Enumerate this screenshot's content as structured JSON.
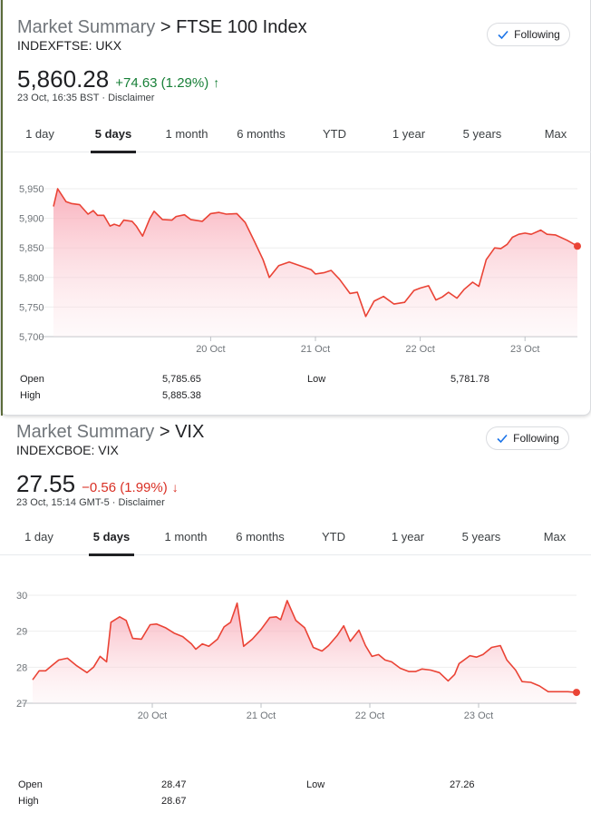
{
  "cards": [
    {
      "crumb": "Market Summary",
      "separator": ">",
      "name": "FTSE 100 Index",
      "ticker": "INDEXFTSE: UKX",
      "follow_label": "Following",
      "price": "5,860.28",
      "change": "+74.63 (1.29%)",
      "direction": "up",
      "arrow": "↑",
      "timestamp": "23 Oct, 16:35 BST",
      "disclaimer": "Disclaimer",
      "tabs": [
        "1 day",
        "5 days",
        "1 month",
        "6 months",
        "YTD",
        "1 year",
        "5 years",
        "Max"
      ],
      "active_tab": "5 days",
      "stats": {
        "open_label": "Open",
        "open": "5,785.65",
        "high_label": "High",
        "high": "5,885.38",
        "low_label": "Low",
        "low": "5,781.78"
      }
    },
    {
      "crumb": "Market Summary",
      "separator": ">",
      "name": "VIX",
      "ticker": "INDEXCBOE: VIX",
      "follow_label": "Following",
      "price": "27.55",
      "change": "−0.56 (1.99%)",
      "direction": "down",
      "arrow": "↓",
      "timestamp": "23 Oct, 15:14 GMT-5",
      "disclaimer": "Disclaimer",
      "tabs": [
        "1 day",
        "5 days",
        "1 month",
        "6 months",
        "YTD",
        "1 year",
        "5 years",
        "Max"
      ],
      "active_tab": "5 days",
      "stats": {
        "open_label": "Open",
        "open": "28.47",
        "high_label": "High",
        "high": "28.67",
        "low_label": "Low",
        "low": "27.26"
      }
    }
  ],
  "chart_data": [
    {
      "type": "line",
      "color": "#ea4335",
      "ylim": [
        5700,
        5950
      ],
      "yticks": [
        "5,700",
        "5,750",
        "5,800",
        "5,850",
        "5,900",
        "5,950"
      ],
      "xticks": [
        "20 Oct",
        "21 Oct",
        "22 Oct",
        "23 Oct"
      ],
      "x_range": [
        0,
        5
      ],
      "xtick_positions": [
        1.5,
        2.5,
        3.5,
        4.5
      ],
      "grid": true,
      "series": [
        {
          "x": [
            0.0,
            0.04,
            0.12,
            0.17,
            0.25,
            0.33,
            0.38,
            0.42,
            0.48,
            0.54,
            0.58,
            0.63,
            0.67,
            0.75,
            0.79,
            0.85,
            0.92,
            0.96,
            1.04,
            1.13,
            1.17,
            1.25,
            1.31,
            1.42,
            1.5,
            1.58,
            1.65,
            1.75,
            1.83,
            1.92,
            2.0,
            2.06,
            2.15,
            2.25,
            2.35,
            2.46,
            2.5,
            2.58,
            2.65,
            2.73,
            2.83,
            2.9,
            2.98,
            3.06,
            3.15,
            3.25,
            3.35,
            3.44,
            3.5,
            3.58,
            3.65,
            3.71,
            3.77,
            3.85,
            3.92,
            4.0,
            4.06,
            4.13,
            4.21,
            4.27,
            4.33,
            4.38,
            4.44,
            4.5,
            4.56,
            4.65,
            4.71,
            4.79,
            4.9,
            5.0
          ],
          "y": [
            5920,
            5950,
            5928,
            5925,
            5923,
            5907,
            5913,
            5905,
            5905,
            5887,
            5890,
            5887,
            5897,
            5895,
            5887,
            5870,
            5900,
            5912,
            5898,
            5897,
            5903,
            5906,
            5898,
            5895,
            5908,
            5910,
            5907,
            5908,
            5893,
            5860,
            5830,
            5800,
            5820,
            5826,
            5820,
            5813,
            5806,
            5808,
            5812,
            5797,
            5773,
            5775,
            5734,
            5760,
            5768,
            5755,
            5758,
            5778,
            5782,
            5786,
            5762,
            5767,
            5775,
            5765,
            5780,
            5792,
            5785,
            5830,
            5850,
            5849,
            5856,
            5868,
            5873,
            5875,
            5873,
            5880,
            5873,
            5872,
            5863,
            5853
          ]
        }
      ]
    },
    {
      "type": "line",
      "color": "#ea4335",
      "ylim": [
        27,
        30
      ],
      "yticks": [
        "27",
        "28",
        "29",
        "30"
      ],
      "xticks": [
        "20 Oct",
        "21 Oct",
        "22 Oct",
        "23 Oct"
      ],
      "x_range": [
        0,
        5
      ],
      "xtick_positions": [
        1.1,
        2.1,
        3.1,
        4.1
      ],
      "grid": true,
      "series": [
        {
          "x": [
            0.0,
            0.06,
            0.12,
            0.18,
            0.24,
            0.32,
            0.4,
            0.5,
            0.56,
            0.62,
            0.68,
            0.72,
            0.8,
            0.86,
            0.92,
            1.0,
            1.08,
            1.14,
            1.22,
            1.3,
            1.38,
            1.46,
            1.5,
            1.56,
            1.62,
            1.7,
            1.76,
            1.82,
            1.88,
            1.94,
            2.02,
            2.1,
            2.18,
            2.24,
            2.28,
            2.34,
            2.42,
            2.5,
            2.58,
            2.66,
            2.72,
            2.8,
            2.86,
            2.92,
            3.0,
            3.06,
            3.12,
            3.18,
            3.24,
            3.3,
            3.38,
            3.46,
            3.52,
            3.58,
            3.66,
            3.74,
            3.82,
            3.88,
            3.92,
            4.02,
            4.08,
            4.14,
            4.22,
            4.3,
            4.36,
            4.44,
            4.5,
            4.58,
            4.66,
            4.74,
            4.84,
            4.92,
            5.0
          ],
          "y": [
            27.65,
            27.9,
            27.9,
            28.05,
            28.2,
            28.25,
            28.05,
            27.85,
            28.0,
            28.3,
            28.15,
            29.25,
            29.4,
            29.3,
            28.8,
            28.78,
            29.18,
            29.2,
            29.1,
            28.95,
            28.85,
            28.65,
            28.5,
            28.65,
            28.58,
            28.78,
            29.12,
            29.25,
            29.78,
            28.58,
            28.78,
            29.05,
            29.38,
            29.4,
            29.32,
            29.85,
            29.3,
            29.1,
            28.55,
            28.45,
            28.6,
            28.88,
            29.15,
            28.72,
            29.03,
            28.6,
            28.3,
            28.35,
            28.2,
            28.15,
            27.97,
            27.88,
            27.88,
            27.95,
            27.92,
            27.85,
            27.62,
            27.8,
            28.1,
            28.32,
            28.28,
            28.35,
            28.55,
            28.6,
            28.2,
            27.92,
            27.6,
            27.58,
            27.48,
            27.32,
            27.32,
            27.32,
            27.3
          ]
        }
      ]
    }
  ]
}
